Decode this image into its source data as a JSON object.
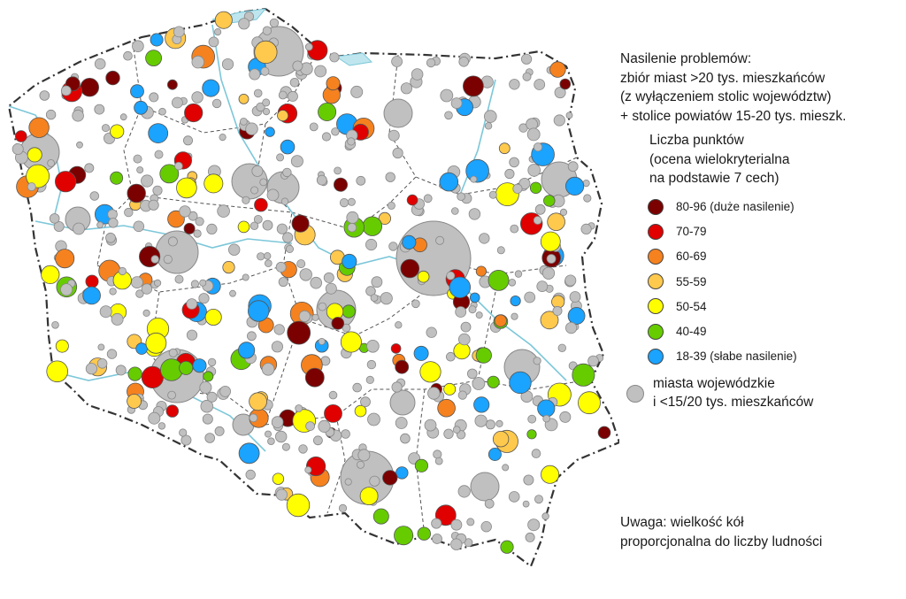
{
  "legend": {
    "title_lines": [
      "Nasilenie problemów:",
      "zbiór miast >20 tys. mieszkańców",
      "(z wyłączeniem stolic województw)",
      "+ stolice powiatów 15-20 tys. mieszk."
    ],
    "subtitle_lines": [
      "Liczba punktów",
      "(ocena wielokryterialna",
      "na podstawie 7 cech)"
    ],
    "items": [
      {
        "label": "80-96 (duże nasilenie)",
        "color": "#7b0000"
      },
      {
        "label": "70-79",
        "color": "#e00000"
      },
      {
        "label": "60-69",
        "color": "#f5821f"
      },
      {
        "label": "55-59",
        "color": "#ffc94d"
      },
      {
        "label": "50-54",
        "color": "#ffff00"
      },
      {
        "label": "40-49",
        "color": "#66cc00"
      },
      {
        "label": "18-39 (słabe nasilenie)",
        "color": "#1aa3ff"
      }
    ],
    "other": {
      "lines": [
        "miasta wojewódzkie",
        "i <15/20 tys. mieszkańców"
      ],
      "color": "#c0c0c0"
    }
  },
  "note": {
    "lines": [
      "Uwaga: wielkość kół",
      "proporcjonalna do liczby ludności"
    ]
  },
  "colors": {
    "background": "#ffffff",
    "voivodeship_border": "#444444",
    "national_border": "#333333",
    "rivers": "#7cc7d9",
    "sea": "#bfe6ee"
  }
}
